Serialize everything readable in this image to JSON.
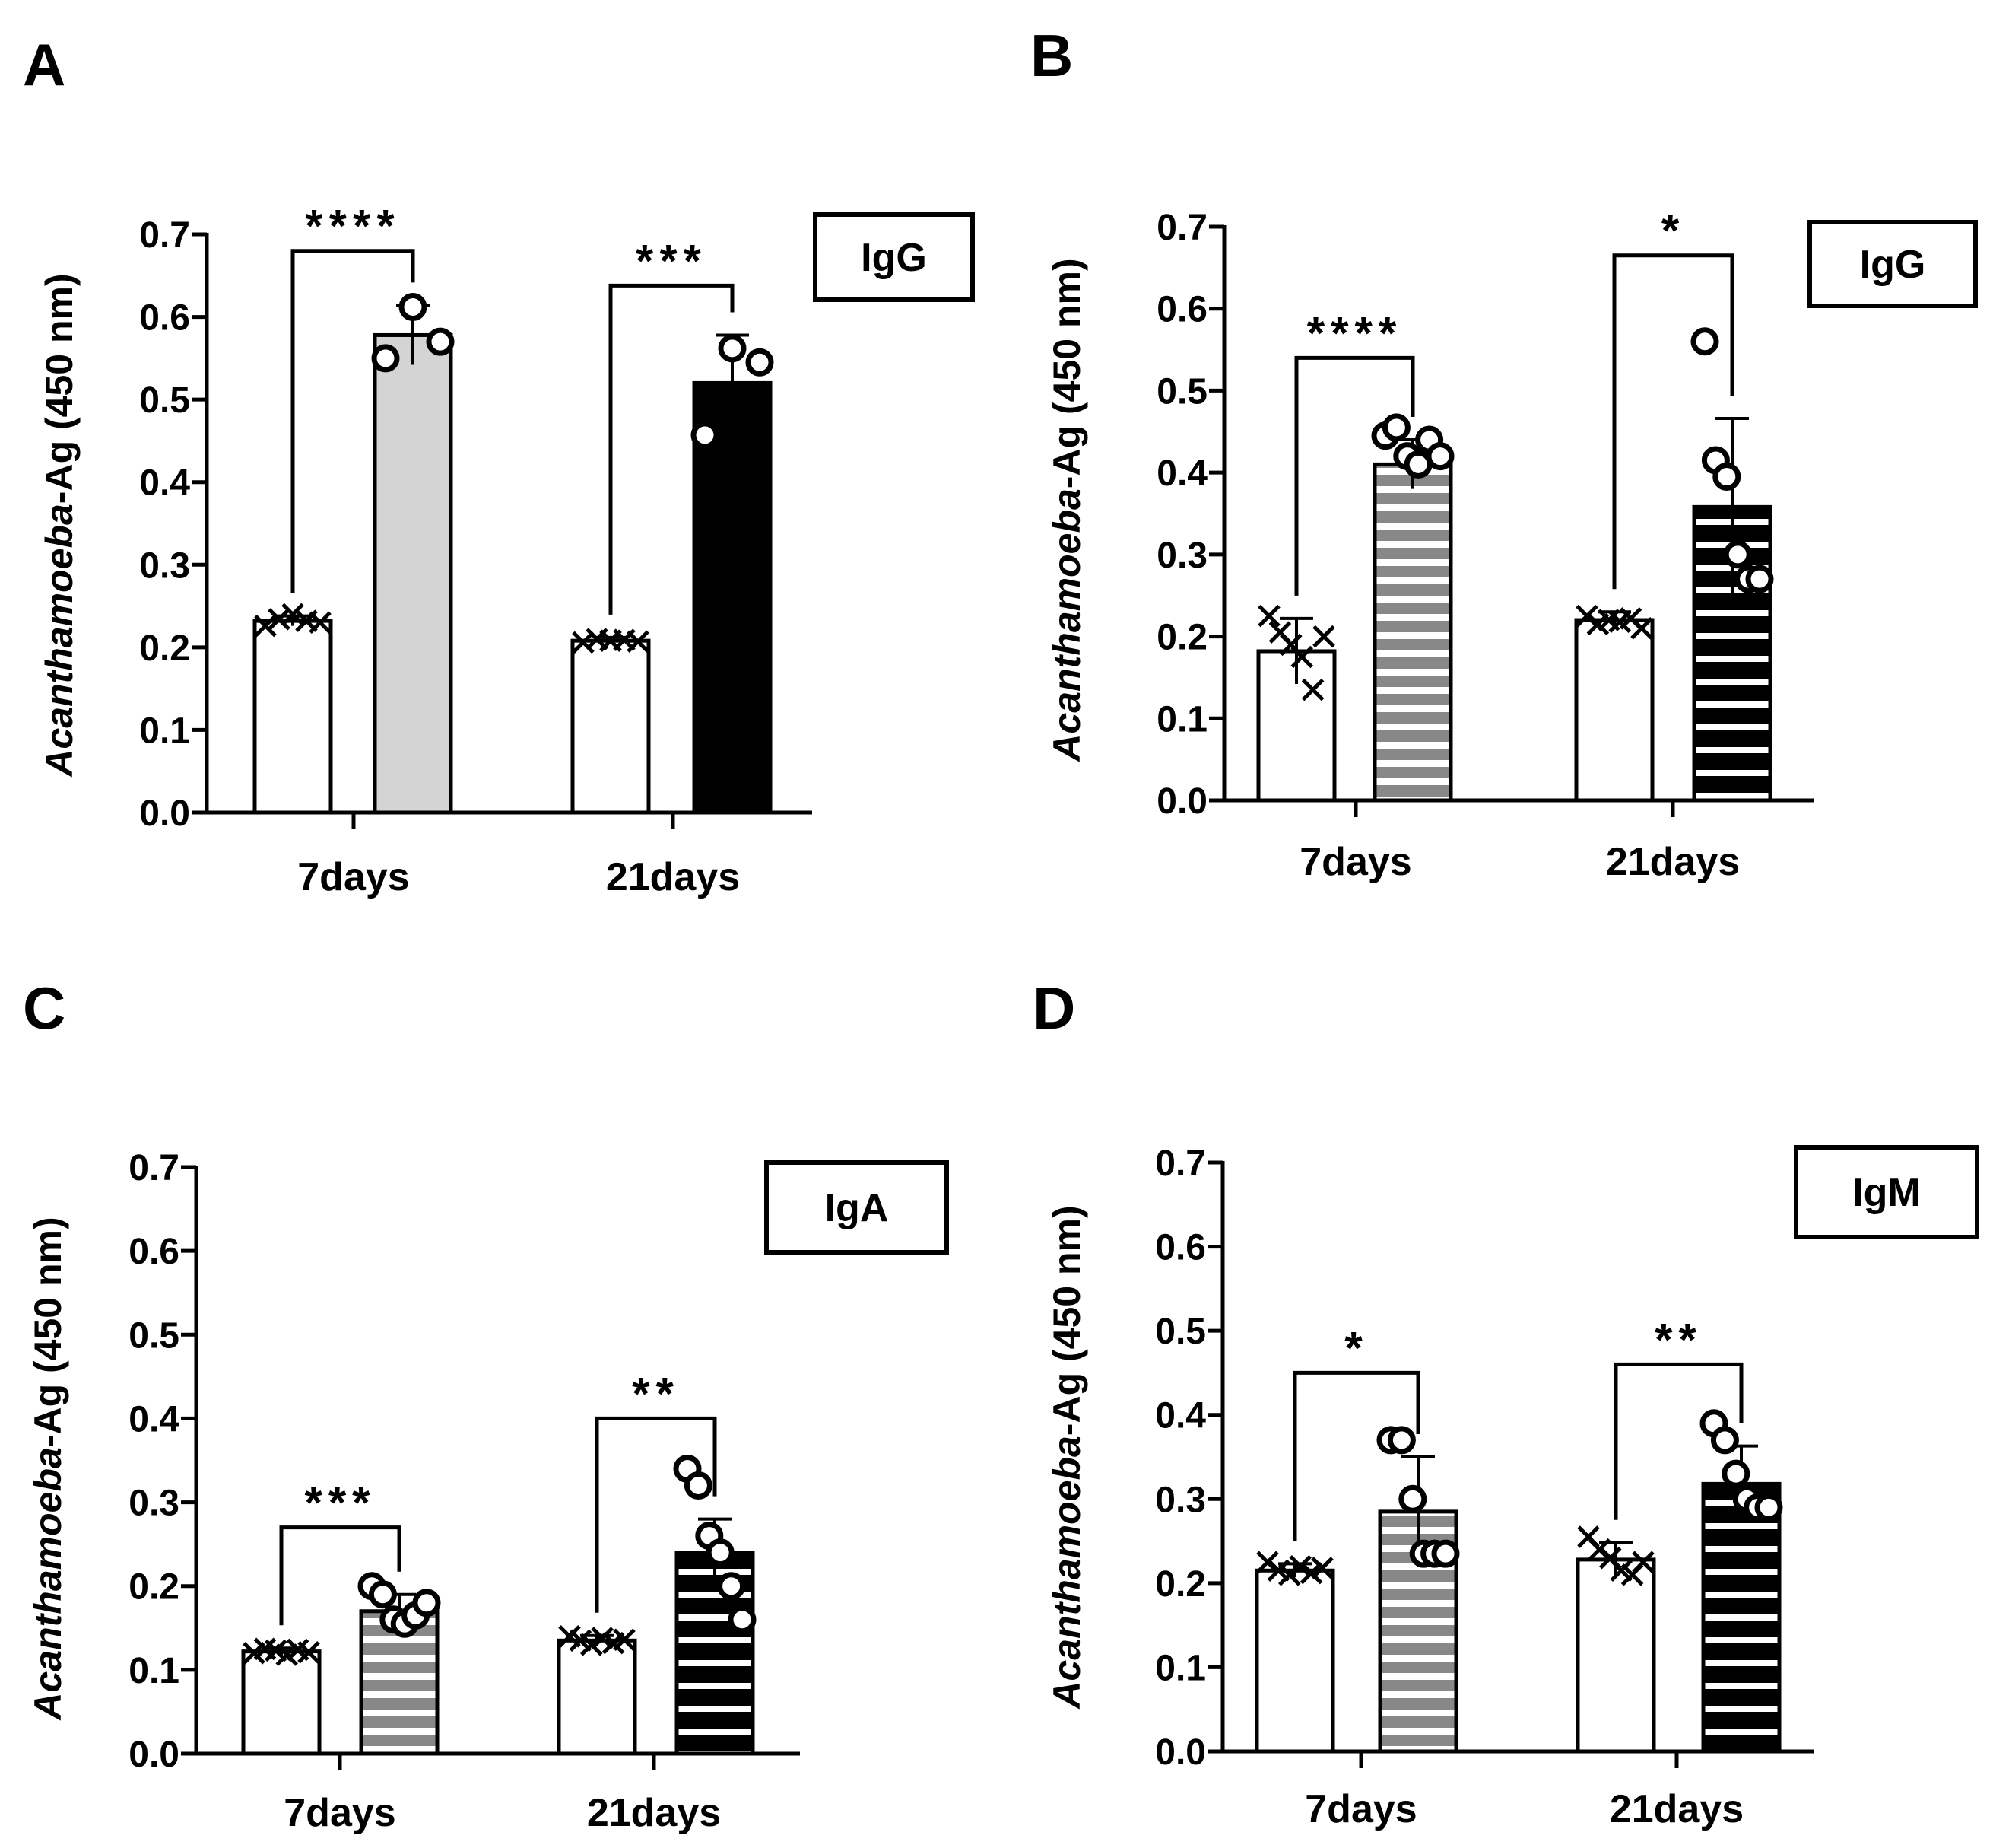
{
  "chart_data": [
    {
      "panel": "A",
      "type": "bar",
      "legend": "IgG",
      "ylabel_italic": "Acanthamoeba",
      "ylabel_rest": "-Ag (450 nm)",
      "ylim": [
        0,
        0.7
      ],
      "yticks": [
        "0.0",
        "0.1",
        "0.2",
        "0.3",
        "0.4",
        "0.5",
        "0.6",
        "0.7"
      ],
      "categories": [
        "7days",
        "21days"
      ],
      "bars": [
        {
          "group": 0,
          "value": 0.232,
          "err": 0.006,
          "fill": "white",
          "marker": "x",
          "points": [
            0.226,
            0.234,
            0.24,
            0.232,
            0.23
          ]
        },
        {
          "group": 0,
          "value": 0.578,
          "err": 0.036,
          "fill": "lightgray",
          "marker": "o",
          "points": [
            0.55,
            0.612,
            0.57
          ]
        },
        {
          "group": 1,
          "value": 0.208,
          "err": 0.004,
          "fill": "white",
          "marker": "x",
          "points": [
            0.206,
            0.21,
            0.208,
            0.209,
            0.207
          ]
        },
        {
          "group": 1,
          "value": 0.52,
          "err": 0.058,
          "fill": "black",
          "marker": "o",
          "points": [
            0.457,
            0.562,
            0.545
          ]
        }
      ],
      "significance": [
        {
          "group": 0,
          "label": "****",
          "height": 0.68
        },
        {
          "group": 1,
          "label": "***",
          "height": 0.638
        }
      ]
    },
    {
      "panel": "B",
      "type": "bar",
      "legend": "IgG",
      "ylabel_italic": "Acanthamoeba",
      "ylabel_rest": "-Ag (450 nm)",
      "ylim": [
        0,
        0.7
      ],
      "yticks": [
        "0.0",
        "0.1",
        "0.2",
        "0.3",
        "0.4",
        "0.5",
        "0.6",
        "0.7"
      ],
      "categories": [
        "7days",
        "21days"
      ],
      "bars": [
        {
          "group": 0,
          "value": 0.182,
          "err": 0.04,
          "fill": "white",
          "marker": "x",
          "points": [
            0.225,
            0.205,
            0.19,
            0.175,
            0.135,
            0.2
          ]
        },
        {
          "group": 0,
          "value": 0.41,
          "err": 0.03,
          "fill": "hstripe-gray",
          "marker": "o",
          "points": [
            0.445,
            0.455,
            0.42,
            0.41,
            0.44,
            0.42
          ]
        },
        {
          "group": 1,
          "value": 0.22,
          "err": 0.01,
          "fill": "white",
          "marker": "x",
          "points": [
            0.225,
            0.215,
            0.22,
            0.218,
            0.222,
            0.21
          ]
        },
        {
          "group": 1,
          "value": 0.358,
          "err": 0.108,
          "fill": "hstripe-black",
          "marker": "o",
          "points": [
            0.56,
            0.415,
            0.395,
            0.3,
            0.27,
            0.27
          ]
        }
      ],
      "significance": [
        {
          "group": 0,
          "label": "****",
          "height": 0.54
        },
        {
          "group": 1,
          "label": "*",
          "height": 0.665
        }
      ]
    },
    {
      "panel": "C",
      "type": "bar",
      "legend": "IgA",
      "ylabel_italic": "Acanthamoeba",
      "ylabel_rest": "-Ag (450 nm)",
      "ylim": [
        0,
        0.7
      ],
      "yticks": [
        "0.0",
        "0.1",
        "0.2",
        "0.3",
        "0.4",
        "0.5",
        "0.6",
        "0.7"
      ],
      "categories": [
        "7days",
        "21days"
      ],
      "bars": [
        {
          "group": 0,
          "value": 0.122,
          "err": 0.004,
          "fill": "white",
          "marker": "x",
          "points": [
            0.12,
            0.125,
            0.123,
            0.118,
            0.124,
            0.121
          ]
        },
        {
          "group": 0,
          "value": 0.17,
          "err": 0.02,
          "fill": "hstripe-gray",
          "marker": "o",
          "points": [
            0.2,
            0.19,
            0.16,
            0.155,
            0.165,
            0.18
          ]
        },
        {
          "group": 1,
          "value": 0.135,
          "err": 0.006,
          "fill": "white",
          "marker": "x",
          "points": [
            0.14,
            0.135,
            0.13,
            0.138,
            0.132,
            0.136
          ]
        },
        {
          "group": 1,
          "value": 0.24,
          "err": 0.04,
          "fill": "hstripe-black",
          "marker": "o",
          "points": [
            0.34,
            0.32,
            0.26,
            0.24,
            0.2,
            0.16
          ]
        }
      ],
      "significance": [
        {
          "group": 0,
          "label": "***",
          "height": 0.27
        },
        {
          "group": 1,
          "label": "**",
          "height": 0.4
        }
      ]
    },
    {
      "panel": "D",
      "type": "bar",
      "legend": "IgM",
      "ylabel_italic": "Acanthamoeba",
      "ylabel_rest": "-Ag (450 nm)",
      "ylim": [
        0,
        0.7
      ],
      "yticks": [
        "0.0",
        "0.1",
        "0.2",
        "0.3",
        "0.4",
        "0.5",
        "0.6",
        "0.7"
      ],
      "categories": [
        "7days",
        "21days"
      ],
      "bars": [
        {
          "group": 0,
          "value": 0.215,
          "err": 0.008,
          "fill": "white",
          "marker": "x",
          "points": [
            0.225,
            0.215,
            0.21,
            0.22,
            0.212,
            0.218
          ]
        },
        {
          "group": 0,
          "value": 0.285,
          "err": 0.065,
          "fill": "hstripe-gray",
          "marker": "o",
          "points": [
            0.37,
            0.37,
            0.3,
            0.235,
            0.235,
            0.235
          ]
        },
        {
          "group": 1,
          "value": 0.228,
          "err": 0.02,
          "fill": "white",
          "marker": "x",
          "points": [
            0.255,
            0.24,
            0.23,
            0.215,
            0.21,
            0.225
          ]
        },
        {
          "group": 1,
          "value": 0.318,
          "err": 0.045,
          "fill": "hstripe-black",
          "marker": "o",
          "points": [
            0.39,
            0.37,
            0.33,
            0.3,
            0.29,
            0.29
          ]
        }
      ],
      "significance": [
        {
          "group": 0,
          "label": "*",
          "height": 0.45
        },
        {
          "group": 1,
          "label": "**",
          "height": 0.46
        }
      ]
    }
  ]
}
